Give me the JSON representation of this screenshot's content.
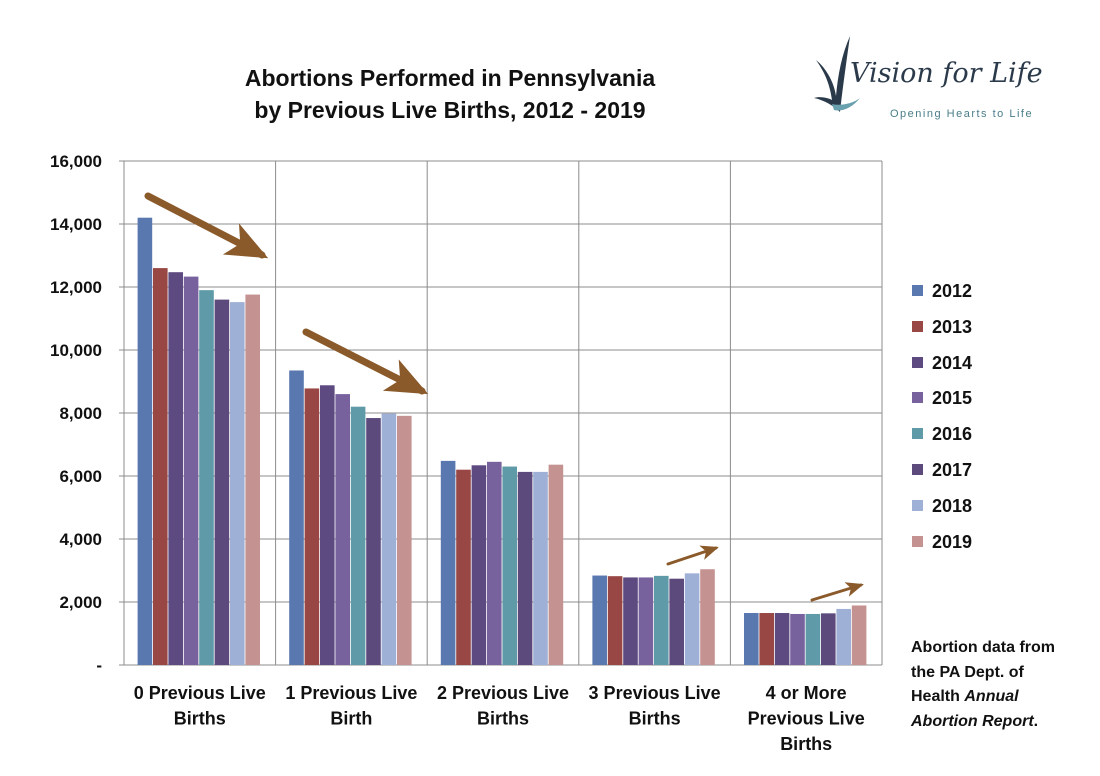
{
  "header": {
    "title_line1": "Abortions Performed in Pennsylvania",
    "title_line2": "by Previous Live Births, 2012 - 2019"
  },
  "logo": {
    "name": "Vision for Life",
    "tagline": "Opening Hearts to Life"
  },
  "source_note": {
    "line1": "Abortion data from",
    "line2": "the PA Dept. of",
    "line3_prefix": "Health",
    "line3_italic": "Annual",
    "line4_italic": "Abortion Report",
    "line4_suffix": "."
  },
  "chart_data": {
    "type": "bar",
    "title": "Abortions Performed in Pennsylvania by Previous Live Births, 2012 - 2019",
    "categories": [
      [
        "0 Previous Live",
        "Births"
      ],
      [
        "1 Previous Live",
        "Birth"
      ],
      [
        "2 Previous Live",
        "Births"
      ],
      [
        "3 Previous Live",
        "Births"
      ],
      [
        "4 or More",
        "Previous Live",
        "Births"
      ]
    ],
    "series": [
      {
        "name": "2012",
        "color": "#5a78b0",
        "values": [
          14200,
          9350,
          6480,
          2840,
          1650
        ]
      },
      {
        "name": "2013",
        "color": "#984744",
        "values": [
          12600,
          8780,
          6200,
          2820,
          1650
        ]
      },
      {
        "name": "2014",
        "color": "#5d4a80",
        "values": [
          12470,
          8880,
          6340,
          2780,
          1650
        ]
      },
      {
        "name": "2015",
        "color": "#77629e",
        "values": [
          12330,
          8600,
          6450,
          2780,
          1620
        ]
      },
      {
        "name": "2016",
        "color": "#5f9aa8",
        "values": [
          11900,
          8200,
          6300,
          2830,
          1620
        ]
      },
      {
        "name": "2017",
        "color": "#5c4a7c",
        "values": [
          11600,
          7840,
          6130,
          2740,
          1640
        ]
      },
      {
        "name": "2018",
        "color": "#9eb0d6",
        "values": [
          11520,
          7980,
          6130,
          2910,
          1780
        ]
      },
      {
        "name": "2019",
        "color": "#c49290",
        "values": [
          11760,
          7910,
          6360,
          3040,
          1890
        ]
      }
    ],
    "ylim": [
      0,
      16000
    ],
    "yticks": [
      "-",
      "2,000",
      "4,000",
      "6,000",
      "8,000",
      "10,000",
      "12,000",
      "14,000",
      "16,000"
    ],
    "ytick_values": [
      0,
      2000,
      4000,
      6000,
      8000,
      10000,
      12000,
      14000,
      16000
    ],
    "xlabel": "",
    "ylabel": "",
    "grid": true,
    "legend": "right",
    "annotations": [
      {
        "type": "arrow",
        "direction": "down-right",
        "category": 0
      },
      {
        "type": "arrow",
        "direction": "down-right",
        "category": 1
      },
      {
        "type": "arrow",
        "direction": "up-right",
        "category": 3
      },
      {
        "type": "arrow",
        "direction": "up-right",
        "category": 4
      }
    ],
    "arrow_color": "#8b5a2b"
  }
}
